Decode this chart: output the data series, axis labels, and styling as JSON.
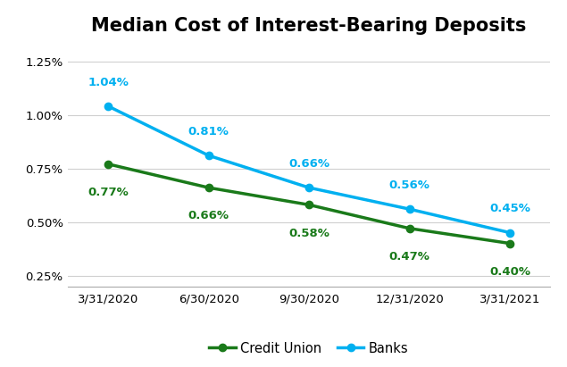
{
  "title": "Median Cost of Interest-Bearing Deposits",
  "x_labels": [
    "3/31/2020",
    "6/30/2020",
    "9/30/2020",
    "12/31/2020",
    "3/31/2021"
  ],
  "credit_union": [
    0.0077,
    0.0066,
    0.0058,
    0.0047,
    0.004
  ],
  "banks": [
    0.0104,
    0.0081,
    0.0066,
    0.0056,
    0.0045
  ],
  "credit_union_labels": [
    "0.77%",
    "0.66%",
    "0.58%",
    "0.47%",
    "0.40%"
  ],
  "banks_labels": [
    "1.04%",
    "0.81%",
    "0.66%",
    "0.56%",
    "0.45%"
  ],
  "credit_union_color": "#1a7a1a",
  "banks_color": "#00b0f0",
  "ylim_min": 0.002,
  "ylim_max": 0.0133,
  "yticks": [
    0.0025,
    0.005,
    0.0075,
    0.01,
    0.0125
  ],
  "ytick_labels": [
    "0.25%",
    "0.50%",
    "0.75%",
    "1.00%",
    "1.25%"
  ],
  "background_color": "#ffffff",
  "legend_labels": [
    "Credit Union",
    "Banks"
  ],
  "title_fontsize": 15,
  "label_fontsize": 9.5,
  "tick_fontsize": 9.5
}
